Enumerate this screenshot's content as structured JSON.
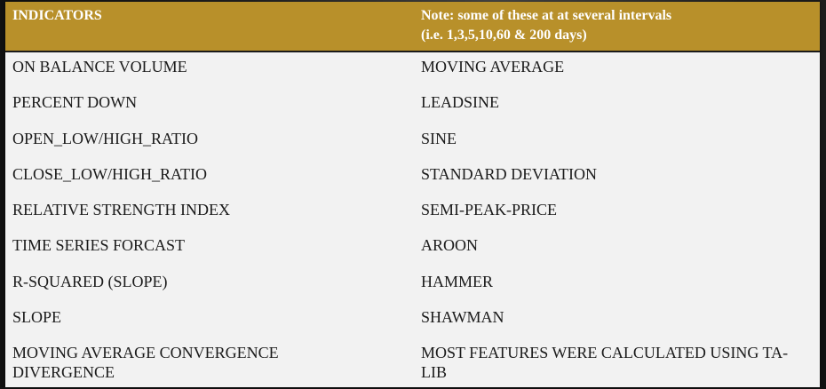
{
  "header": {
    "left": "INDICATORS",
    "right_line1": "Note: some of these at at several intervals",
    "right_line2": "(i.e.  1,3,5,10,60 & 200 days)"
  },
  "rows": [
    {
      "left": "ON BALANCE VOLUME",
      "right": "MOVING  AVERAGE"
    },
    {
      "left": "PERCENT DOWN",
      "right": "LEADSINE"
    },
    {
      "left": "OPEN_LOW/HIGH_RATIO",
      "right": "SINE"
    },
    {
      "left": "CLOSE_LOW/HIGH_RATIO",
      "right": "STANDARD DEVIATION"
    },
    {
      "left": "RELATIVE STRENGTH INDEX",
      "right": "SEMI-PEAK-PRICE"
    },
    {
      "left": "TIME SERIES FORCAST",
      "right": "AROON"
    },
    {
      "left": "R-SQUARED (SLOPE)",
      "right": "HAMMER"
    },
    {
      "left": "SLOPE",
      "right": "SHAWMAN"
    },
    {
      "left": "MOVING AVERAGE CONVERGENCE DIVERGENCE",
      "right": "MOST FEATURES WERE CALCULATED USING TA-LIB"
    }
  ]
}
